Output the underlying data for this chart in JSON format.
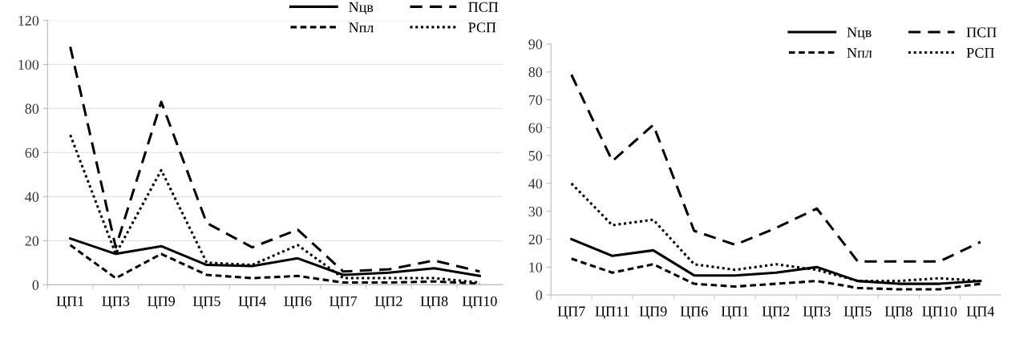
{
  "chart_data": [
    {
      "type": "line",
      "categories": [
        "ЦП1",
        "ЦП3",
        "ЦП9",
        "ЦП5",
        "ЦП4",
        "ЦП6",
        "ЦП7",
        "ЦП2",
        "ЦП8",
        "ЦП10"
      ],
      "ylim": [
        0,
        120
      ],
      "yticks": [
        0,
        20,
        40,
        60,
        80,
        100,
        120
      ],
      "grid": "y",
      "legend": "top right",
      "series": [
        {
          "name": "Nцв",
          "color": "#000000",
          "line_style": "solid",
          "values": [
            21,
            14,
            17.5,
            9,
            8.5,
            12,
            4.5,
            5.5,
            7.5,
            4
          ]
        },
        {
          "name": "Nпл",
          "color": "#000000",
          "line_style": "dashed",
          "values": [
            18,
            3,
            14,
            4.5,
            3,
            4,
            1,
            1,
            1.5,
            0.5
          ]
        },
        {
          "name": "ПСП",
          "color": "#000000",
          "line_style": "dashed",
          "values": [
            108,
            17,
            83,
            28,
            17,
            25,
            6,
            7,
            11,
            6
          ]
        },
        {
          "name": "РСП",
          "color": "#000000",
          "line_style": "dotted",
          "values": [
            68,
            14,
            52,
            10,
            9,
            18,
            3,
            3,
            3,
            1
          ]
        }
      ]
    },
    {
      "type": "line",
      "categories": [
        "ЦП7",
        "ЦП11",
        "ЦП9",
        "ЦП6",
        "ЦП1",
        "ЦП2",
        "ЦП3",
        "ЦП5",
        "ЦП8",
        "ЦП10",
        "ЦП4"
      ],
      "ylim": [
        0,
        90
      ],
      "yticks": [
        0,
        10,
        20,
        30,
        40,
        50,
        60,
        70,
        80,
        90
      ],
      "grid": false,
      "legend": "top right",
      "series": [
        {
          "name": "Nцв",
          "color": "#000000",
          "line_style": "solid",
          "values": [
            20,
            14,
            16,
            7,
            7,
            8,
            10,
            5,
            4,
            4,
            5
          ]
        },
        {
          "name": "Nпл",
          "color": "#000000",
          "line_style": "dashed",
          "values": [
            13,
            8,
            11,
            4,
            3,
            4,
            5,
            2.5,
            2,
            2,
            4
          ]
        },
        {
          "name": "ПСП",
          "color": "#000000",
          "line_style": "dashed",
          "values": [
            79,
            48,
            61,
            23,
            18,
            24,
            31,
            12,
            12,
            12,
            19
          ]
        },
        {
          "name": "РСП",
          "color": "#000000",
          "line_style": "dotted",
          "values": [
            40,
            25,
            27,
            11,
            9,
            11,
            9,
            5,
            5,
            6,
            5
          ]
        }
      ]
    }
  ]
}
